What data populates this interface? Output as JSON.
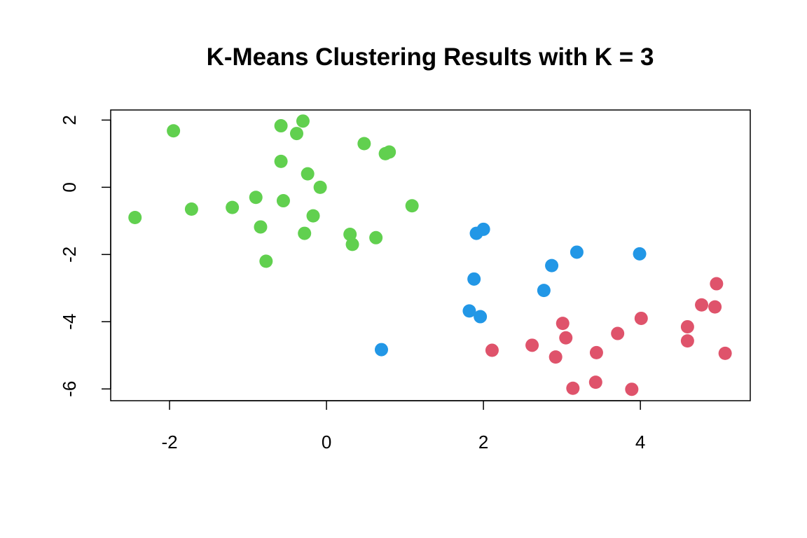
{
  "chart_data": {
    "type": "scatter",
    "title": "K-Means Clustering Results with K = 3",
    "xlabel": "",
    "ylabel": "",
    "xlim": [
      -2.75,
      5.4
    ],
    "ylim": [
      -6.35,
      2.3
    ],
    "x_ticks": [
      -2,
      0,
      2,
      4
    ],
    "y_ticks": [
      -6,
      -4,
      -2,
      0,
      2
    ],
    "grid": false,
    "legend": "none",
    "series": [
      {
        "color": "#61D04F",
        "points": [
          [
            -1.95,
            1.68
          ],
          [
            -0.58,
            1.83
          ],
          [
            -0.3,
            1.97
          ],
          [
            -0.38,
            1.6
          ],
          [
            0.48,
            1.3
          ],
          [
            0.75,
            1.0
          ],
          [
            0.8,
            1.05
          ],
          [
            -0.58,
            0.77
          ],
          [
            -0.24,
            0.4
          ],
          [
            -0.08,
            0.0
          ],
          [
            -0.9,
            -0.3
          ],
          [
            -0.55,
            -0.4
          ],
          [
            -1.72,
            -0.65
          ],
          [
            -1.2,
            -0.6
          ],
          [
            -2.44,
            -0.9
          ],
          [
            -0.17,
            -0.85
          ],
          [
            1.09,
            -0.55
          ],
          [
            -0.84,
            -1.18
          ],
          [
            -0.28,
            -1.37
          ],
          [
            0.3,
            -1.4
          ],
          [
            0.33,
            -1.7
          ],
          [
            0.63,
            -1.5
          ],
          [
            -0.77,
            -2.2
          ]
        ]
      },
      {
        "color": "#2297E6",
        "points": [
          [
            2.0,
            -1.25
          ],
          [
            1.91,
            -1.37
          ],
          [
            3.19,
            -1.93
          ],
          [
            3.99,
            -1.98
          ],
          [
            2.87,
            -2.33
          ],
          [
            1.88,
            -2.73
          ],
          [
            2.77,
            -3.07
          ],
          [
            1.82,
            -3.68
          ],
          [
            1.96,
            -3.85
          ],
          [
            0.7,
            -4.83
          ]
        ]
      },
      {
        "color": "#DF536B",
        "points": [
          [
            4.97,
            -2.87
          ],
          [
            4.78,
            -3.5
          ],
          [
            4.95,
            -3.56
          ],
          [
            4.01,
            -3.9
          ],
          [
            3.01,
            -4.05
          ],
          [
            4.6,
            -4.15
          ],
          [
            3.71,
            -4.35
          ],
          [
            3.05,
            -4.48
          ],
          [
            4.6,
            -4.57
          ],
          [
            2.11,
            -4.85
          ],
          [
            2.62,
            -4.7
          ],
          [
            3.44,
            -4.92
          ],
          [
            5.08,
            -4.94
          ],
          [
            2.92,
            -5.05
          ],
          [
            3.43,
            -5.8
          ],
          [
            3.14,
            -5.98
          ],
          [
            3.89,
            -6.01
          ]
        ]
      }
    ]
  }
}
